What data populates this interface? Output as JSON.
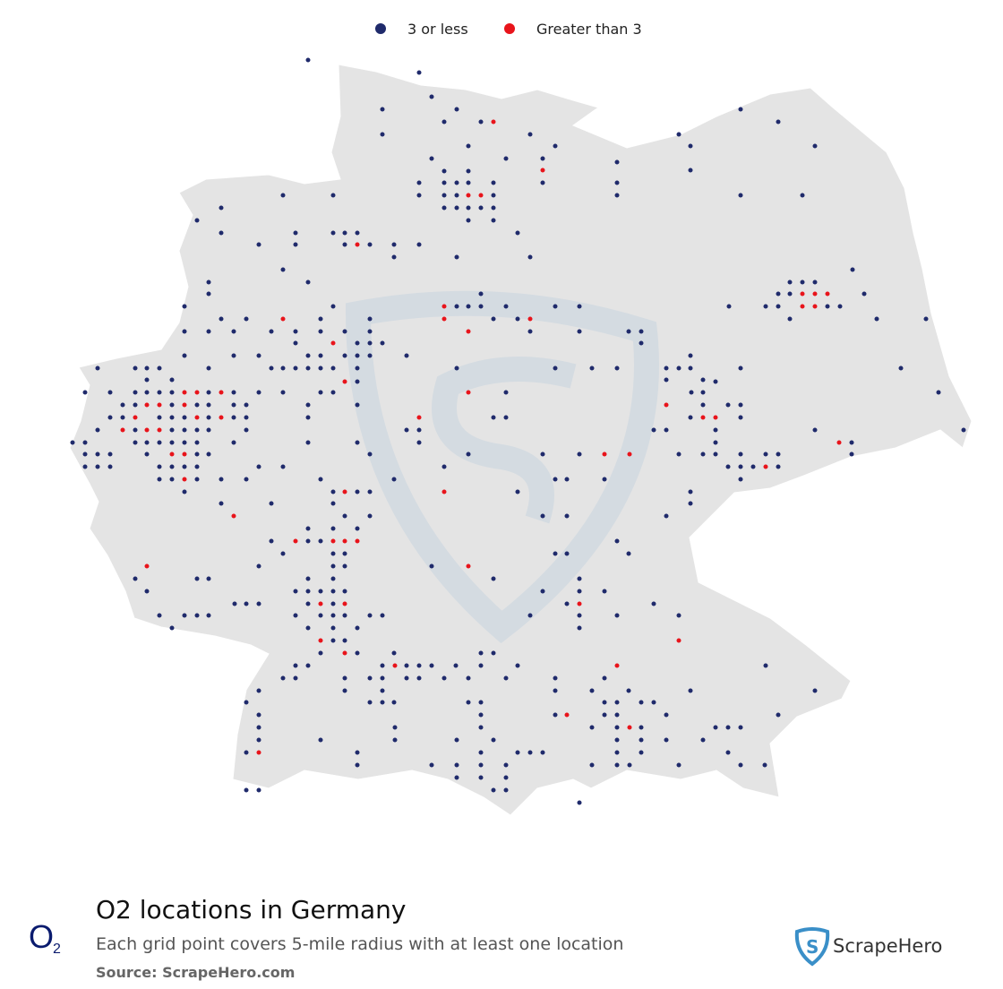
{
  "legend": {
    "low": "3 or less",
    "high": "Greater than 3"
  },
  "logo": {
    "letter": "O",
    "sub": "2"
  },
  "title": "O2 locations in Germany",
  "subtitle": "Each grid point covers 5-mile radius with at least one location",
  "source": "Source: ScrapeHero.com",
  "brand": "ScrapeHero"
}
